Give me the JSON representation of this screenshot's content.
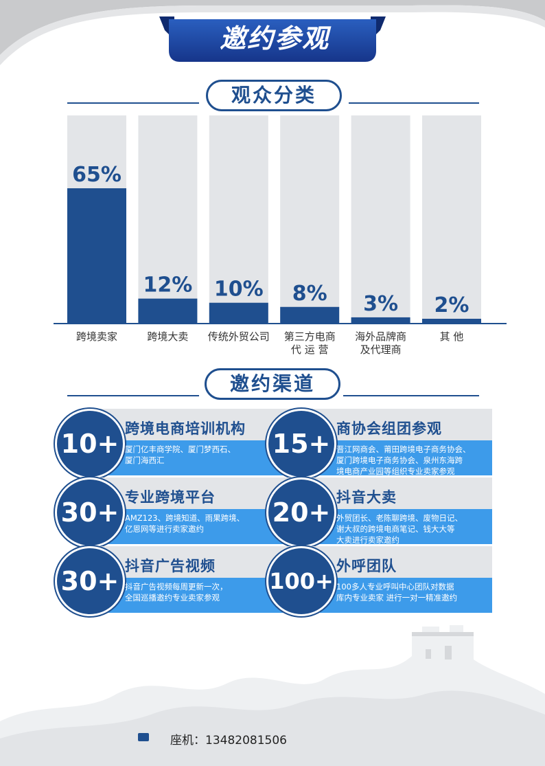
{
  "page_title": "邀约参观",
  "sections": {
    "audience_title": "观众分类",
    "channels_title": "邀约渠道"
  },
  "chart_data": {
    "type": "bar",
    "categories": [
      [
        "跨境卖家"
      ],
      [
        "跨境大卖"
      ],
      [
        "传统外贸公司"
      ],
      [
        "第三方电商",
        "代  运  营"
      ],
      [
        "海外品牌商",
        "及代理商"
      ],
      [
        "其    他"
      ]
    ],
    "values": [
      65,
      12,
      10,
      8,
      3,
      2
    ],
    "value_labels": [
      "65%",
      "12%",
      "10%",
      "8%",
      "3%",
      "2%"
    ],
    "ylim": [
      0,
      100
    ],
    "colors": {
      "bar": "#1f4f8f",
      "track": "#e3e5e8"
    }
  },
  "channels": [
    {
      "number": "10+",
      "title": "跨境电商培训机构",
      "desc": [
        "厦门亿丰商学院、厦门梦西石、",
        "厦门海西汇"
      ]
    },
    {
      "number": "15+",
      "title": "商协会组团参观",
      "desc": [
        "晋江网商会、莆田跨境电子商务协会、",
        "厦门跨境电子商务协会、泉州东海跨",
        "境电商产业园等组织专业卖家参观"
      ]
    },
    {
      "number": "30+",
      "title": "专业跨境平台",
      "desc": [
        "AMZ123、跨境知道、雨果跨境、",
        "亿恩网等进行卖家邀约"
      ]
    },
    {
      "number": "20+",
      "title": "抖音大卖",
      "desc": [
        "外贸团长、老陈聊跨境、废物日记、",
        "谢大叔的跨境电商笔记、钱大大等",
        "大卖进行卖家邀约"
      ]
    },
    {
      "number": "30+",
      "title": "抖音广告视频",
      "desc": [
        "抖音广告视频每周更新一次，",
        "全国巡播邀约专业卖家参观"
      ]
    },
    {
      "number": "100+",
      "title": "外呼团队",
      "desc": [
        "100多人专业呼叫中心团队对数据",
        "库内专业卖家 进行一对一精准邀约"
      ]
    }
  ],
  "footer": {
    "phone_label": "座机：13482081506"
  },
  "colors": {
    "primary": "#1f4f8f",
    "accent": "#3d9bea",
    "light": "#e3e5e8"
  }
}
